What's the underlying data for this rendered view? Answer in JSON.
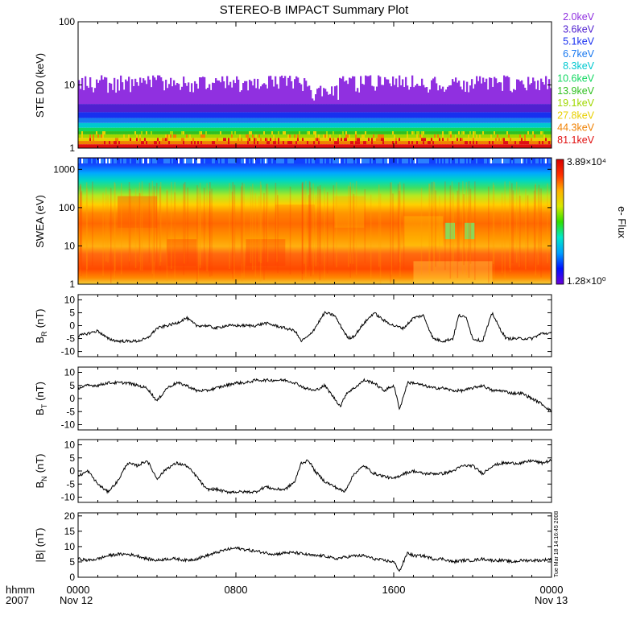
{
  "title": "STEREO-B IMPACT Summary Plot",
  "x_axis": {
    "label_line1": "hhmm",
    "label_line2": "2007",
    "tick_labels": [
      "0000",
      "0800",
      "1600",
      "0000"
    ],
    "tick_hours": [
      0,
      8,
      16,
      24
    ],
    "date_labels": [
      "Nov 12",
      "Nov 13"
    ]
  },
  "timestamp": "Tue Mar 18 14:16:45 2008",
  "colors": {
    "trace": "#000000",
    "axis": "#000000",
    "colorbar_stops": [
      "#6a00d8",
      "#0010ff",
      "#00a0ff",
      "#00e8c8",
      "#30e000",
      "#d8e800",
      "#ffb000",
      "#ff3000",
      "#d80000"
    ]
  },
  "chart_data": [
    {
      "type": "line",
      "panel": "ste",
      "ylabel": "STE D0 (keV)",
      "yscale": "log",
      "ylim": [
        1,
        100
      ],
      "yticks": [
        1,
        10,
        100
      ],
      "ytick_labels": [
        "1",
        "10",
        "100"
      ],
      "legend_placement": "right",
      "series": [
        {
          "name": "2.0keV",
          "color": "#9030e0",
          "level": 7.5
        },
        {
          "name": "3.6keV",
          "color": "#5020d0",
          "level": 5.0
        },
        {
          "name": "5.1keV",
          "color": "#1830f0",
          "level": 3.7
        },
        {
          "name": "6.7keV",
          "color": "#1878f0",
          "level": 3.0
        },
        {
          "name": "8.3keV",
          "color": "#00c8d0",
          "level": 2.5
        },
        {
          "name": "10.6keV",
          "color": "#10d860",
          "level": 2.1
        },
        {
          "name": "13.9keV",
          "color": "#30c020",
          "level": 1.85
        },
        {
          "name": "19.1keV",
          "color": "#a0d800",
          "level": 1.65
        },
        {
          "name": "27.8keV",
          "color": "#e8d000",
          "level": 1.45
        },
        {
          "name": "44.3keV",
          "color": "#f08000",
          "level": 1.3
        },
        {
          "name": "81.1keV",
          "color": "#e01010",
          "level": 1.15
        }
      ]
    },
    {
      "type": "heatmap",
      "panel": "swea",
      "ylabel": "SWEA (eV)",
      "yscale": "log",
      "ylim": [
        1,
        2000
      ],
      "yticks": [
        1,
        10,
        100,
        1000
      ],
      "ytick_labels": [
        "1",
        "10",
        "100",
        "1000"
      ],
      "colorbar": {
        "label": "e- Flux",
        "max_label": "3.89×10⁴",
        "min_label": "1.28×10⁰",
        "max": 38900,
        "min": 1.28
      }
    },
    {
      "type": "line",
      "panel": "br",
      "ylabel_main": "B",
      "ylabel_sub": "R",
      "ylabel_unit": "(nT)",
      "ylim": [
        -12,
        12
      ],
      "yticks": [
        -10,
        -5,
        0,
        5,
        10
      ],
      "ytick_labels": [
        "-10",
        "-5",
        "0",
        "5",
        "10"
      ],
      "x_hours": [
        0,
        0.5,
        1,
        1.5,
        2,
        2.5,
        3,
        3.5,
        4,
        4.5,
        5,
        5.5,
        6,
        6.5,
        7,
        7.5,
        8,
        8.5,
        9,
        9.5,
        10,
        10.5,
        11,
        11.3,
        11.7,
        12,
        12.5,
        13,
        13.3,
        13.7,
        14,
        14.5,
        15,
        15.5,
        16,
        16.5,
        17,
        17.5,
        18,
        18.5,
        19,
        19.3,
        19.7,
        20,
        20.5,
        21,
        21.3,
        21.7,
        22,
        22.5,
        23,
        23.5,
        24
      ],
      "values": [
        -4,
        -3,
        -2,
        -5,
        -6,
        -6,
        -6,
        -5,
        -1,
        0,
        1,
        3,
        0,
        0,
        -1,
        0,
        0,
        0,
        0,
        1,
        0,
        -1,
        -2,
        -6,
        -4,
        -1,
        5,
        4,
        0,
        -5,
        -4,
        1,
        5,
        2,
        0,
        -1,
        3,
        4,
        -5,
        -6,
        -5,
        4,
        3,
        -5,
        -6,
        5,
        0,
        -5,
        -5,
        -5,
        -5,
        -3,
        -3
      ]
    },
    {
      "type": "line",
      "panel": "bt",
      "ylabel_main": "B",
      "ylabel_sub": "T",
      "ylabel_unit": "(nT)",
      "ylim": [
        -12,
        12
      ],
      "yticks": [
        -10,
        -5,
        0,
        5,
        10
      ],
      "ytick_labels": [
        "-10",
        "-5",
        "0",
        "5",
        "10"
      ],
      "x_hours": [
        0,
        0.5,
        1,
        1.5,
        2,
        2.5,
        3,
        3.5,
        4,
        4.5,
        5,
        5.5,
        6,
        6.5,
        7,
        7.5,
        8,
        8.5,
        9,
        9.5,
        10,
        10.5,
        11,
        11.5,
        12,
        12.5,
        13,
        13.3,
        13.6,
        14,
        14.5,
        15,
        15.5,
        16,
        16.3,
        16.7,
        17,
        17.5,
        18,
        18.5,
        19,
        19.5,
        20,
        20.5,
        21,
        21.5,
        22,
        22.5,
        23,
        23.5,
        24
      ],
      "values": [
        4,
        5,
        5,
        6,
        6,
        6,
        5,
        4,
        -1,
        4,
        6,
        5,
        3,
        3,
        4,
        5,
        6,
        6,
        7,
        7,
        7,
        7,
        6,
        4,
        3,
        5,
        0,
        -3,
        2,
        4,
        7,
        6,
        3,
        5,
        -4,
        6,
        6,
        5,
        4,
        4,
        3,
        3,
        4,
        5,
        3,
        3,
        2,
        2,
        0,
        -2,
        -5
      ]
    },
    {
      "type": "line",
      "panel": "bn",
      "ylabel_main": "B",
      "ylabel_sub": "N",
      "ylabel_unit": "(nT)",
      "ylim": [
        -12,
        12
      ],
      "yticks": [
        -10,
        -5,
        0,
        5,
        10
      ],
      "ytick_labels": [
        "-10",
        "-5",
        "0",
        "5",
        "10"
      ],
      "x_hours": [
        0,
        0.5,
        1,
        1.5,
        2,
        2.5,
        3,
        3.5,
        4,
        4.5,
        5,
        5.5,
        6,
        6.5,
        7,
        7.5,
        8,
        8.5,
        9,
        9.5,
        10,
        10.5,
        11,
        11.3,
        11.7,
        12,
        12.5,
        13,
        13.5,
        14,
        14.5,
        15,
        15.5,
        16,
        16.5,
        17,
        17.5,
        18,
        18.5,
        19,
        19.5,
        20,
        20.5,
        21,
        21.5,
        22,
        22.5,
        23,
        23.5,
        24
      ],
      "values": [
        -2,
        0,
        -5,
        -8,
        -4,
        3,
        2,
        4,
        -3,
        1,
        3,
        2,
        -2,
        -7,
        -7,
        -8,
        -8,
        -8,
        -8,
        -6,
        -7,
        -7,
        -4,
        3,
        4,
        0,
        -4,
        -6,
        -8,
        -1,
        2,
        -1,
        -2,
        -3,
        -1,
        0,
        -1,
        -1,
        -1,
        0,
        2,
        2,
        -1,
        2,
        3,
        3,
        3,
        4,
        3,
        4
      ]
    },
    {
      "type": "line",
      "panel": "bmag",
      "ylabel": "|B| (nT)",
      "ylim": [
        0,
        21
      ],
      "yticks": [
        0,
        5,
        10,
        15,
        20
      ],
      "ytick_labels": [
        "0",
        "5",
        "10",
        "15",
        "20"
      ],
      "x_hours": [
        0,
        0.5,
        1,
        1.5,
        2,
        2.5,
        3,
        3.5,
        4,
        4.5,
        5,
        5.5,
        6,
        6.5,
        7,
        7.5,
        8,
        8.5,
        9,
        9.5,
        10,
        10.5,
        11,
        11.5,
        12,
        12.5,
        13,
        13.5,
        14,
        14.5,
        15,
        15.5,
        16,
        16.3,
        16.7,
        17,
        17.5,
        18,
        18.5,
        19,
        19.5,
        20,
        20.5,
        21,
        21.5,
        22,
        22.5,
        23,
        23.5,
        24
      ],
      "values": [
        6,
        5.5,
        6,
        7,
        7.5,
        7.5,
        7,
        6,
        5.5,
        6,
        6,
        5.5,
        6,
        7,
        8,
        9,
        9.5,
        9,
        8.5,
        8,
        7.5,
        8,
        8,
        7.5,
        7,
        7,
        6,
        6.5,
        7,
        7,
        6,
        5.5,
        5,
        2,
        8,
        7,
        7,
        6,
        6,
        5,
        5.5,
        5.5,
        6,
        5.5,
        5.5,
        5,
        5.5,
        5.5,
        5.5,
        6
      ]
    }
  ]
}
